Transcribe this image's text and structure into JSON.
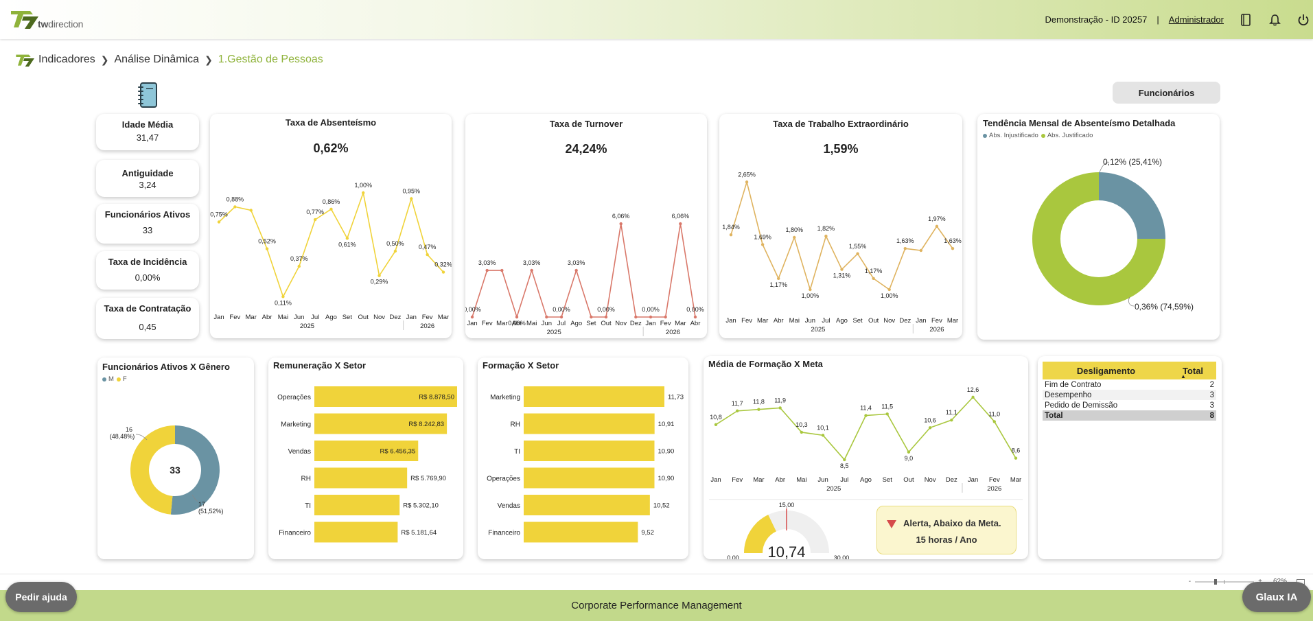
{
  "header": {
    "logo_text_bold": "tw",
    "logo_text": "direction",
    "demo_label": "Demonstração - ID 20257",
    "separator": "|",
    "user_label": "Administrador",
    "icons": [
      "book-icon",
      "bell-icon",
      "power-icon"
    ]
  },
  "breadcrumb": {
    "items": [
      "Indicadores",
      "Análise Dinâmica",
      "1.Gestão de Pessoas"
    ]
  },
  "filter_button": "Funcionários",
  "kpis": [
    {
      "title": "Idade Média",
      "value": "31,47"
    },
    {
      "title": "Antiguidade",
      "value": "3,24"
    },
    {
      "title": "Funcionários Ativos",
      "value": "33"
    },
    {
      "title": "Taxa de Incidência",
      "value": "0,00%"
    },
    {
      "title": "Taxa de Contratação",
      "value": "0,45"
    }
  ],
  "months_axis": {
    "labels": [
      "Jan",
      "Fev",
      "Mar",
      "Abr",
      "Mai",
      "Jun",
      "Jul",
      "Ago",
      "Set",
      "Out",
      "Nov",
      "Dez",
      "Jan",
      "Fev",
      "Mar"
    ],
    "labels_abr": [
      "Jan",
      "Fev",
      "Mar",
      "Abr",
      "Mai",
      "Jun",
      "Jul",
      "Ago",
      "Set",
      "Out",
      "Nov",
      "Dez",
      "Jan",
      "Fev",
      "Mar",
      "Abr"
    ],
    "years": [
      "2025",
      "2026"
    ]
  },
  "absenteismo": {
    "title": "Taxa de Absenteísmo",
    "big_value": "0,62%",
    "color": "#f0d33a",
    "chart_data": {
      "type": "line",
      "categories": [
        "Jan 2025",
        "Fev 2025",
        "Mar 2025",
        "Abr 2025",
        "Mai 2025",
        "Jun 2025",
        "Jul 2025",
        "Ago 2025",
        "Set 2025",
        "Out 2025",
        "Nov 2025",
        "Dez 2025",
        "Jan 2026",
        "Fev 2026",
        "Mar 2026"
      ],
      "values": [
        0.75,
        0.88,
        0.85,
        0.52,
        0.11,
        0.37,
        0.77,
        0.86,
        0.61,
        1.0,
        0.29,
        0.5,
        0.95,
        0.47,
        0.32
      ],
      "labels": [
        "0,75%",
        "0,88%",
        "",
        "0,52%",
        "0,11%",
        "0,37%",
        "0,77%",
        "0,86%",
        "0,61%",
        "1,00%",
        "0,29%",
        "0,50%",
        "0,95%",
        "0,47%",
        "0,32%"
      ],
      "ylim": [
        0,
        1.1
      ]
    }
  },
  "turnover": {
    "title": "Taxa de Turnover",
    "big_value": "24,24%",
    "color": "#d9786a",
    "chart_data": {
      "type": "line",
      "categories": [
        "Jan 2025",
        "Fev 2025",
        "Mar 2025",
        "Abr 2025",
        "Mai 2025",
        "Jun 2025",
        "Jul 2025",
        "Ago 2025",
        "Set 2025",
        "Out 2025",
        "Nov 2025",
        "Dez 2025",
        "Jan 2026",
        "Fev 2026",
        "Mar 2026",
        "Abr 2026"
      ],
      "values": [
        0.0,
        3.03,
        3.03,
        0.0,
        3.03,
        0.0,
        0.0,
        3.03,
        0.0,
        0.0,
        6.06,
        0.0,
        0.0,
        0.0,
        6.06,
        0.0
      ],
      "labels": [
        "0,00%",
        "3,03%",
        "",
        "0,00%",
        "3,03%",
        "",
        "0,00%",
        "3,03%",
        "",
        "0,00%",
        "6,06%",
        "",
        "0,00%",
        "",
        "6,06%",
        "0,00%"
      ],
      "ylim": [
        0,
        6.6
      ]
    }
  },
  "extraordinario": {
    "title": "Taxa de Trabalho Extraordinário",
    "big_value": "1,59%",
    "color": "#dfb35f",
    "chart_data": {
      "type": "line",
      "categories": [
        "Jan 2025",
        "Fev 2025",
        "Mar 2025",
        "Abr 2025",
        "Mai 2025",
        "Jun 2025",
        "Jul 2025",
        "Ago 2025",
        "Set 2025",
        "Out 2025",
        "Nov 2025",
        "Dez 2025",
        "Jan 2026",
        "Fev 2026",
        "Mar 2026"
      ],
      "values": [
        1.84,
        2.65,
        1.69,
        1.17,
        1.8,
        1.0,
        1.82,
        1.31,
        1.55,
        1.17,
        1.0,
        1.63,
        1.6,
        1.97,
        1.63
      ],
      "labels": [
        "1,84%",
        "2,65%",
        "1,69%",
        "1,17%",
        "1,80%",
        "1,00%",
        "1,82%",
        "1,31%",
        "1,55%",
        "1,17%",
        "1,00%",
        "1,63%",
        "",
        "1,97%",
        "1,63%"
      ],
      "ylim": [
        0.8,
        2.8
      ]
    }
  },
  "tendencia": {
    "title": "Tendência Mensal de Absenteísmo Detalhada",
    "legend": [
      "Abs. Injustificado",
      "Abs. Justificado"
    ],
    "colors": [
      "#6a93a3",
      "#a9c73e"
    ],
    "chart_data": {
      "type": "pie",
      "labels": [
        "Abs. Injustificado",
        "Abs. Justificado"
      ],
      "values": [
        0.12,
        0.36
      ],
      "percent": [
        25.41,
        74.59
      ],
      "data_labels": [
        "0,12% (25,41%)",
        "0,36% (74,59%)"
      ]
    }
  },
  "genero": {
    "title": "Funcionários Ativos X Gênero",
    "legend": [
      "M",
      "F"
    ],
    "colors": [
      "#6a93a3",
      "#f0d33a"
    ],
    "center": "33",
    "chart_data": {
      "type": "pie",
      "labels": [
        "M",
        "F"
      ],
      "values": [
        17,
        16
      ],
      "percent": [
        51.52,
        48.48
      ],
      "data_labels": [
        [
          "17",
          "(51,52%)"
        ],
        [
          "16",
          "(48,48%)"
        ]
      ]
    }
  },
  "remuneracao": {
    "title": "Remuneração X Setor",
    "color": "#f0d33a",
    "chart_data": {
      "type": "bar",
      "categories": [
        "Operações",
        "Marketing",
        "Vendas",
        "RH",
        "TI",
        "Financeiro"
      ],
      "values": [
        8878.5,
        8242.83,
        6456.35,
        5769.9,
        5302.1,
        5181.64
      ],
      "labels": [
        "R$ 8.878,50",
        "R$ 8.242,83",
        "R$ 6.456,35",
        "R$ 5.769,90",
        "R$ 5.302,10",
        "R$ 5.181,64"
      ],
      "xlim": [
        0,
        8878.5
      ]
    }
  },
  "formacao_setor": {
    "title": "Formação X Setor",
    "color": "#f0d33a",
    "chart_data": {
      "type": "bar",
      "categories": [
        "Marketing",
        "RH",
        "TI",
        "Operações",
        "Vendas",
        "Financeiro"
      ],
      "values": [
        11.73,
        10.91,
        10.9,
        10.9,
        10.52,
        9.52
      ],
      "labels": [
        "11,73",
        "10,91",
        "10,90",
        "10,90",
        "10,52",
        "9,52"
      ],
      "xlim": [
        0,
        11.73
      ]
    }
  },
  "formacao_meta": {
    "title": "Média de Formação X Meta",
    "color": "#a9c73e",
    "chart_data": {
      "type": "line",
      "categories": [
        "Jan 2025",
        "Fev 2025",
        "Mar 2025",
        "Abr 2025",
        "Mai 2025",
        "Jun 2025",
        "Jul 2025",
        "Ago 2025",
        "Set 2025",
        "Out 2025",
        "Nov 2025",
        "Dez 2025",
        "Jan 2026",
        "Fev 2026",
        "Mar 2026"
      ],
      "values": [
        10.8,
        11.7,
        11.8,
        11.9,
        10.3,
        10.1,
        8.5,
        11.4,
        11.5,
        9.0,
        10.6,
        11.1,
        12.6,
        11.0,
        8.6
      ],
      "labels": [
        "10,8",
        "11,7",
        "11,8",
        "11,9",
        "10,3",
        "10,1",
        "8,5",
        "11,4",
        "11,5",
        "9,0",
        "10,6",
        "11,1",
        "12,6",
        "11,0",
        "8,6"
      ],
      "ylim": [
        8.0,
        13.0
      ]
    },
    "gauge": {
      "value": 10.74,
      "value_label": "10,74",
      "min_label": "0,00",
      "max_label": "30,00",
      "target_label": "15,00",
      "min": 0,
      "max": 30,
      "target": 15,
      "color": "#f0d33a"
    },
    "alert": {
      "line1": "Alerta, Abaixo da Meta.",
      "line2": "15 horas / Ano"
    }
  },
  "desligamento": {
    "headers": [
      "Desligamento",
      "Total"
    ],
    "rows": [
      {
        "label": "Fim de Contrato",
        "value": "2"
      },
      {
        "label": "Desempenho",
        "value": "3"
      },
      {
        "label": "Pedido de Demissão",
        "value": "3"
      }
    ],
    "total": {
      "label": "Total",
      "value": "8"
    }
  },
  "statusbar": {
    "zoom_minus": "-",
    "zoom_plus": "+",
    "zoom_level": "62%"
  },
  "footer": {
    "text": "Corporate Performance Management",
    "help": "Pedir ajuda",
    "glaux": "Glaux IA"
  }
}
